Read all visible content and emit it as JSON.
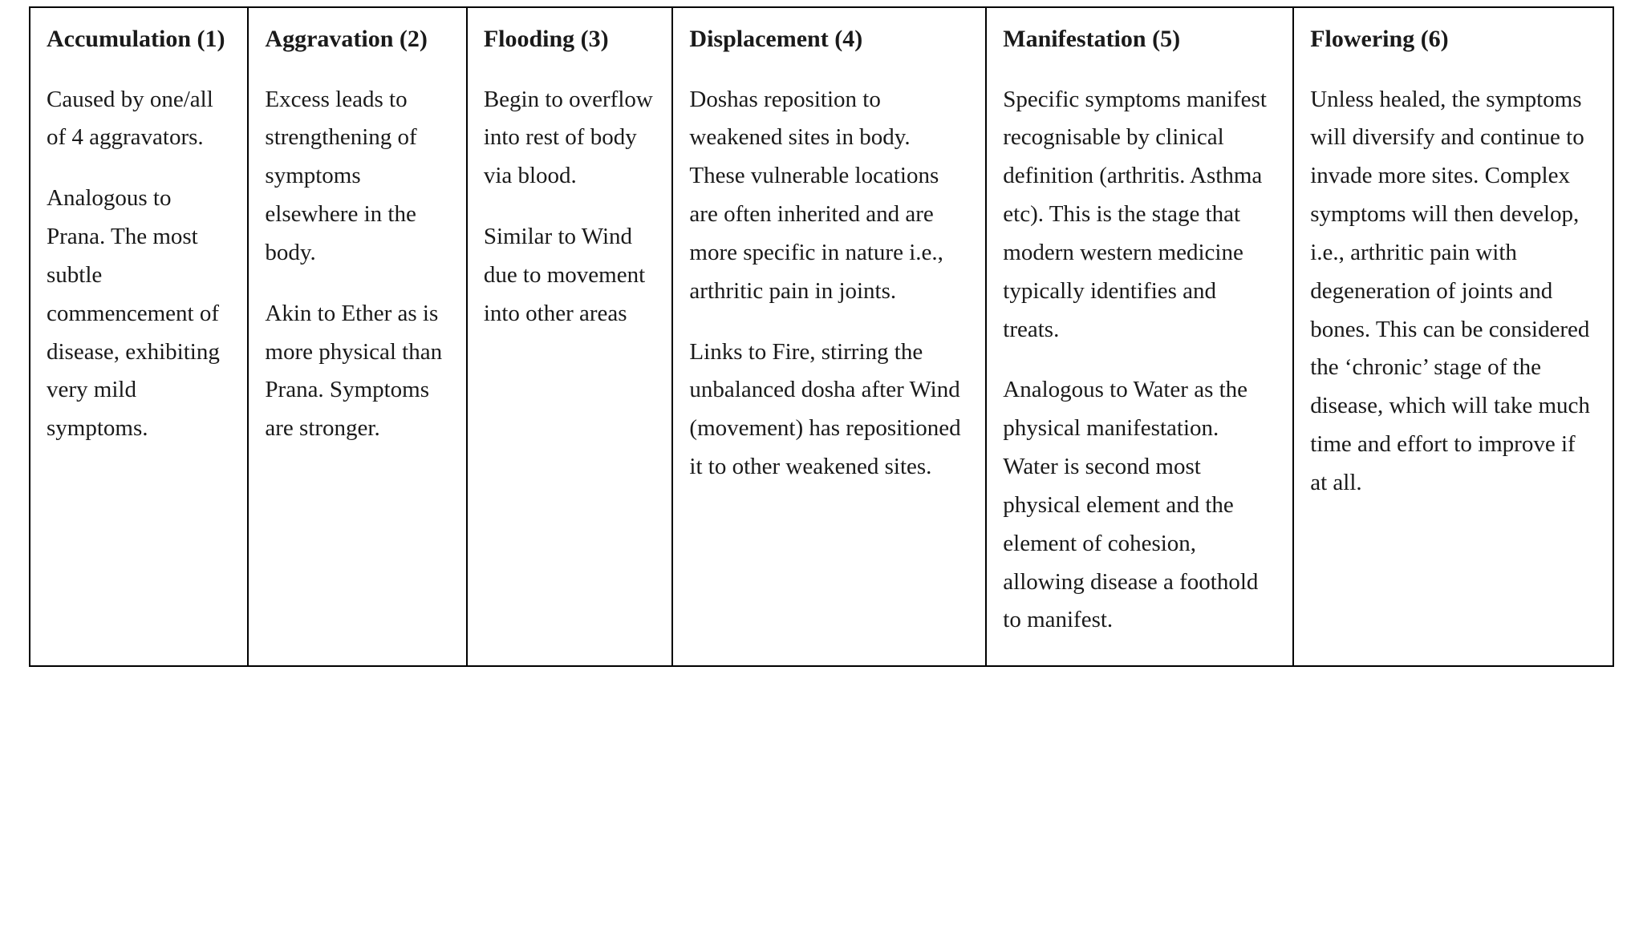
{
  "table": {
    "border_color": "#000000",
    "background_color": "#ffffff",
    "text_color": "#1a1a1a",
    "font_family": "Georgia, 'Times New Roman', serif",
    "heading_fontsize_pt": 22,
    "body_fontsize_pt": 21,
    "column_widths_pct": [
      13.8,
      13.8,
      13.0,
      19.8,
      19.4,
      20.2
    ],
    "columns": [
      {
        "heading": "Accumulation (1)",
        "paragraphs": [
          "Caused by one/all of 4 aggravators.",
          "Analogous to Prana. The most subtle commencement of disease, exhibiting very mild symptoms."
        ]
      },
      {
        "heading": "Aggravation (2)",
        "paragraphs": [
          "Excess leads to strengthening of symptoms elsewhere in the body.",
          "Akin to Ether as is more physical than Prana. Symptoms are stronger."
        ]
      },
      {
        "heading": "Flooding (3)",
        "paragraphs": [
          "Begin to overflow into rest of body via blood.",
          "Similar to Wind due to movement into other areas"
        ]
      },
      {
        "heading": "Displacement (4)",
        "paragraphs": [
          "Doshas reposition to weakened sites in body. These vulnerable locations are often inherited and are more specific in nature i.e., arthritic pain in joints.",
          "Links to Fire, stirring the unbalanced dosha after Wind (movement) has repositioned it to other weakened sites."
        ]
      },
      {
        "heading": "Manifestation (5)",
        "paragraphs": [
          "Specific symptoms manifest recognisable by clinical definition (arthritis. Asthma etc). This is the stage that modern western medicine typically identifies and treats.",
          "Analogous to Water as the physical manifestation. Water is second most physical element and the element of cohesion, allowing disease a foothold to manifest."
        ]
      },
      {
        "heading": "Flowering (6)",
        "paragraphs": [
          "Unless healed, the symptoms will diversify and continue to invade more sites. Complex symptoms will then develop, i.e., arthritic pain with degeneration of joints and bones. This can be considered the ‘chronic’ stage of the disease, which will take much time and effort to improve if at all."
        ]
      }
    ]
  }
}
